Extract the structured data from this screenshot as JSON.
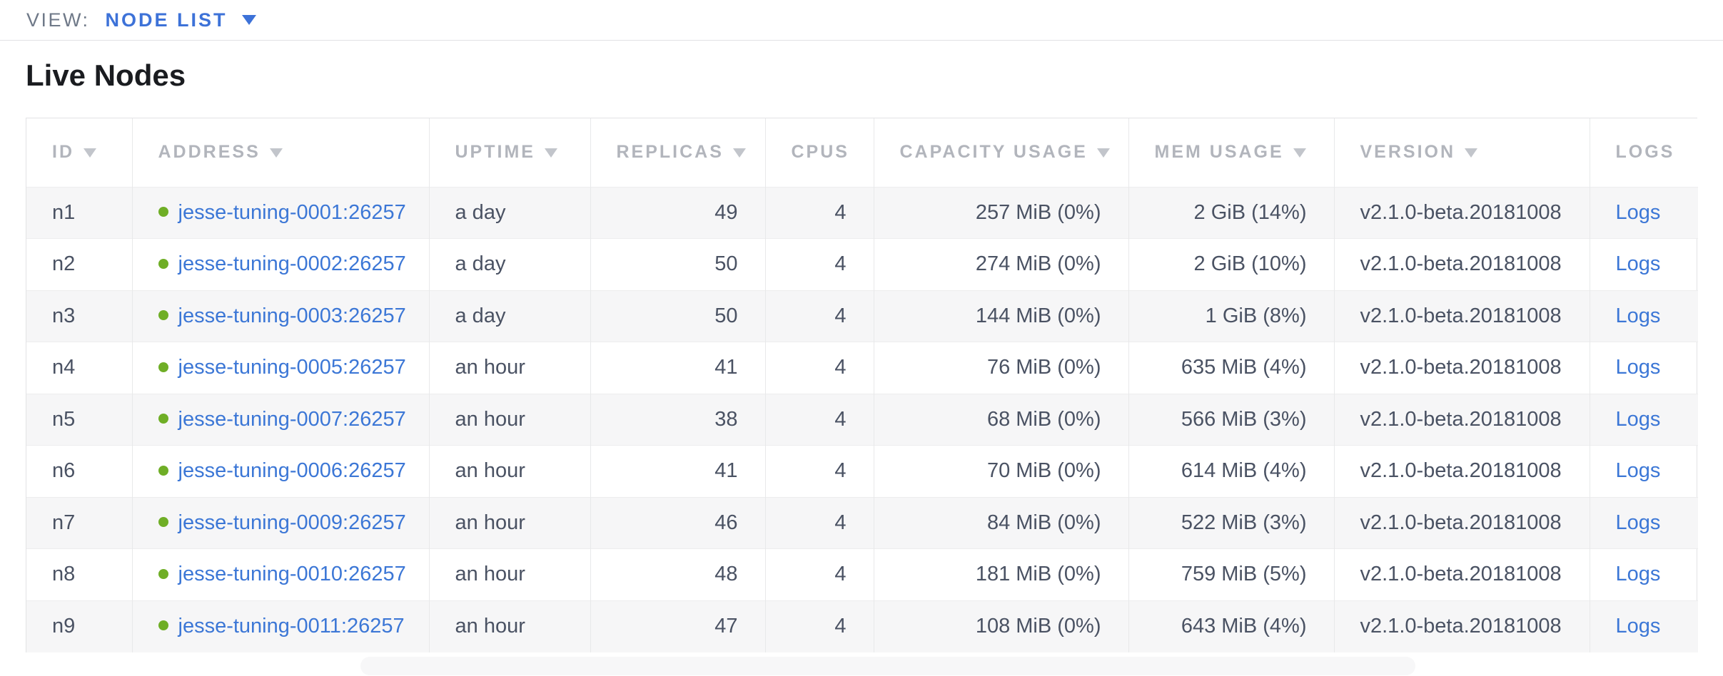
{
  "view_bar": {
    "label": "VIEW:",
    "selected": "NODE LIST"
  },
  "page": {
    "title": "Live Nodes"
  },
  "table": {
    "columns": [
      {
        "key": "id",
        "label": "ID",
        "sortable": true
      },
      {
        "key": "address",
        "label": "ADDRESS",
        "sortable": true
      },
      {
        "key": "uptime",
        "label": "UPTIME",
        "sortable": true
      },
      {
        "key": "replicas",
        "label": "REPLICAS",
        "sortable": true
      },
      {
        "key": "cpus",
        "label": "CPUS",
        "sortable": false
      },
      {
        "key": "capacity_usage",
        "label": "CAPACITY USAGE",
        "sortable": true
      },
      {
        "key": "mem_usage",
        "label": "MEM USAGE",
        "sortable": true
      },
      {
        "key": "version",
        "label": "VERSION",
        "sortable": true
      },
      {
        "key": "logs",
        "label": "LOGS",
        "sortable": false
      }
    ],
    "rows": [
      {
        "id": "n1",
        "address": "jesse-tuning-0001:26257",
        "status": "live",
        "uptime": "a day",
        "replicas": "49",
        "cpus": "4",
        "capacity_usage": "257 MiB (0%)",
        "mem_usage": "2 GiB (14%)",
        "version": "v2.1.0-beta.20181008",
        "logs_label": "Logs"
      },
      {
        "id": "n2",
        "address": "jesse-tuning-0002:26257",
        "status": "live",
        "uptime": "a day",
        "replicas": "50",
        "cpus": "4",
        "capacity_usage": "274 MiB (0%)",
        "mem_usage": "2 GiB (10%)",
        "version": "v2.1.0-beta.20181008",
        "logs_label": "Logs"
      },
      {
        "id": "n3",
        "address": "jesse-tuning-0003:26257",
        "status": "live",
        "uptime": "a day",
        "replicas": "50",
        "cpus": "4",
        "capacity_usage": "144 MiB (0%)",
        "mem_usage": "1 GiB (8%)",
        "version": "v2.1.0-beta.20181008",
        "logs_label": "Logs"
      },
      {
        "id": "n4",
        "address": "jesse-tuning-0005:26257",
        "status": "live",
        "uptime": "an hour",
        "replicas": "41",
        "cpus": "4",
        "capacity_usage": "76 MiB (0%)",
        "mem_usage": "635 MiB (4%)",
        "version": "v2.1.0-beta.20181008",
        "logs_label": "Logs"
      },
      {
        "id": "n5",
        "address": "jesse-tuning-0007:26257",
        "status": "live",
        "uptime": "an hour",
        "replicas": "38",
        "cpus": "4",
        "capacity_usage": "68 MiB (0%)",
        "mem_usage": "566 MiB (3%)",
        "version": "v2.1.0-beta.20181008",
        "logs_label": "Logs"
      },
      {
        "id": "n6",
        "address": "jesse-tuning-0006:26257",
        "status": "live",
        "uptime": "an hour",
        "replicas": "41",
        "cpus": "4",
        "capacity_usage": "70 MiB (0%)",
        "mem_usage": "614 MiB (4%)",
        "version": "v2.1.0-beta.20181008",
        "logs_label": "Logs"
      },
      {
        "id": "n7",
        "address": "jesse-tuning-0009:26257",
        "status": "live",
        "uptime": "an hour",
        "replicas": "46",
        "cpus": "4",
        "capacity_usage": "84 MiB (0%)",
        "mem_usage": "522 MiB (3%)",
        "version": "v2.1.0-beta.20181008",
        "logs_label": "Logs"
      },
      {
        "id": "n8",
        "address": "jesse-tuning-0010:26257",
        "status": "live",
        "uptime": "an hour",
        "replicas": "48",
        "cpus": "4",
        "capacity_usage": "181 MiB (0%)",
        "mem_usage": "759 MiB (5%)",
        "version": "v2.1.0-beta.20181008",
        "logs_label": "Logs"
      },
      {
        "id": "n9",
        "address": "jesse-tuning-0011:26257",
        "status": "live",
        "uptime": "an hour",
        "replicas": "47",
        "cpus": "4",
        "capacity_usage": "108 MiB (0%)",
        "mem_usage": "643 MiB (4%)",
        "version": "v2.1.0-beta.20181008",
        "logs_label": "Logs"
      }
    ]
  },
  "colors": {
    "accent_blue": "#3d72d8",
    "link_blue": "#3c77d6",
    "status_green": "#6fae26",
    "header_gray": "#b2b5bc"
  }
}
